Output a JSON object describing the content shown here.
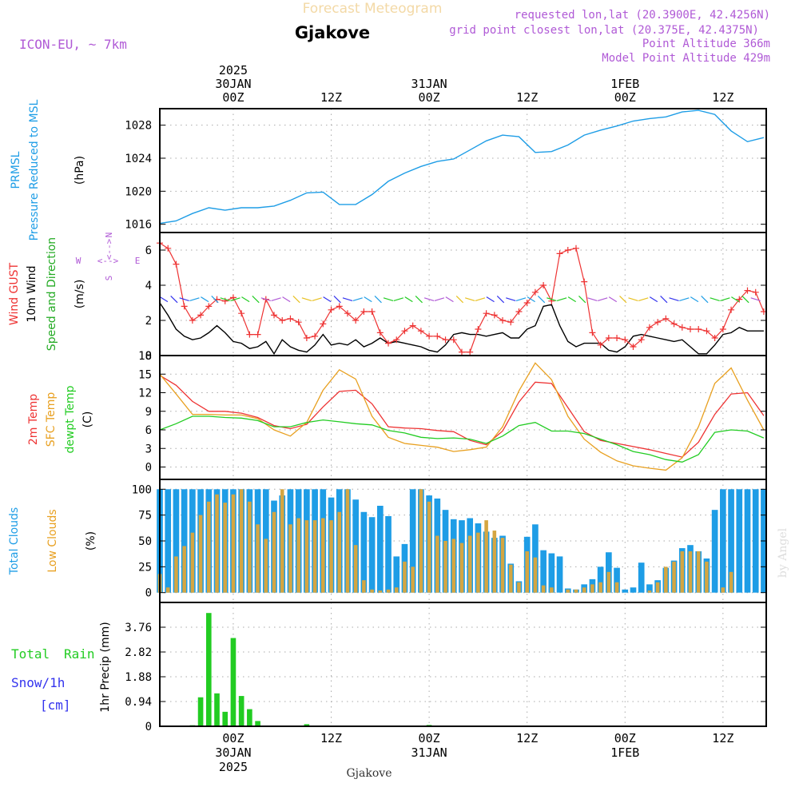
{
  "header": {
    "forecast_label": "Forecast Meteogram",
    "station": "Gjakove",
    "model": "ICON-EU, ~ 7km",
    "requested": "requested lon,lat (20.3900E, 42.4256N)",
    "grid_point": "grid point closest lon,lat (20.375E, 42.4375N)",
    "point_altitude": "Point Altitude 366m",
    "model_altitude": "Model Point Altitude 429m"
  },
  "footer": {
    "station": "Gjakove",
    "credit": "by Angel"
  },
  "time_axis": {
    "top_labels": [
      {
        "hour": 9,
        "lines": [
          "2025",
          "30JAN",
          "00Z"
        ]
      },
      {
        "hour": 21,
        "lines": [
          "12Z"
        ]
      },
      {
        "hour": 33,
        "lines": [
          "31JAN",
          "00Z"
        ]
      },
      {
        "hour": 45,
        "lines": [
          "12Z"
        ]
      },
      {
        "hour": 57,
        "lines": [
          "1FEB",
          "00Z"
        ]
      },
      {
        "hour": 69,
        "lines": [
          "12Z"
        ]
      }
    ],
    "bottom_labels": [
      {
        "hour": 9,
        "lines": [
          "00Z",
          "30JAN",
          "2025"
        ]
      },
      {
        "hour": 21,
        "lines": [
          "12Z"
        ]
      },
      {
        "hour": 33,
        "lines": [
          "00Z",
          "31JAN"
        ]
      },
      {
        "hour": 45,
        "lines": [
          "12Z"
        ]
      },
      {
        "hour": 57,
        "lines": [
          "00Z",
          "1FEB"
        ]
      },
      {
        "hour": 69,
        "lines": [
          "12Z"
        ]
      }
    ]
  },
  "panels": {
    "pressure": {
      "title": "PRMSL",
      "subtitle": "Pressure Reduced to MSL",
      "unit": "(hPa)",
      "ticks": [
        "1016",
        "1020",
        "1024",
        "1028"
      ]
    },
    "wind": {
      "gust_label": "Wind GUST",
      "wind_label": "10m Wind",
      "dir_label": "Speed and Direction",
      "unit": "(m/s)",
      "ticks": [
        "0",
        "2",
        "4",
        "6"
      ],
      "compass": {
        "n": "N",
        "s": "S",
        "e": "E",
        "w": "W",
        "ns": "<-->",
        "we": "<-->"
      }
    },
    "temp": {
      "t2m_label": "2m Temp",
      "sfc_label": "SFC Temp",
      "dew_label": "dewpt Temp",
      "unit": "(C)",
      "ticks": [
        "0",
        "3",
        "6",
        "9",
        "12",
        "15",
        "18"
      ]
    },
    "clouds": {
      "total_label": "Total Clouds",
      "low_label": "Low Clouds",
      "unit": "(%)",
      "ticks": [
        "0",
        "25",
        "50",
        "75",
        "100"
      ]
    },
    "precip": {
      "total_label": "Total",
      "rain_label": "Rain",
      "snow_label": "Snow/1h",
      "snow_unit": "[cm]",
      "unit": "1hr Precip (mm)",
      "ticks": [
        "0",
        "0.94",
        "1.88",
        "2.82",
        "3.76"
      ]
    }
  },
  "chart_data": [
    {
      "type": "line",
      "title": "PRMSL Pressure Reduced to MSL",
      "ylabel": "(hPa)",
      "x_hours_from_start": [
        0,
        2,
        4,
        6,
        8,
        10,
        12,
        14,
        16,
        18,
        20,
        22,
        24,
        26,
        28,
        30,
        32,
        34,
        36,
        38,
        40,
        42,
        44,
        46,
        48,
        50,
        52,
        54,
        56,
        58,
        60,
        62,
        64,
        66,
        68,
        70,
        72,
        74
      ],
      "ylim": [
        1015,
        1030
      ],
      "series": [
        {
          "name": "PRMSL",
          "color": "#1e9de6",
          "values": [
            1016.1,
            1016.4,
            1017.3,
            1018.0,
            1017.7,
            1018.0,
            1018.0,
            1018.2,
            1018.9,
            1019.8,
            1019.9,
            1018.4,
            1018.4,
            1019.6,
            1021.2,
            1022.2,
            1023.0,
            1023.6,
            1023.9,
            1025.0,
            1026.1,
            1026.8,
            1026.6,
            1024.7,
            1024.8,
            1025.6,
            1026.8,
            1027.4,
            1027.9,
            1028.5,
            1028.8,
            1029.0,
            1029.6,
            1029.8,
            1029.3,
            1027.3,
            1026.0,
            1026.5
          ]
        }
      ]
    },
    {
      "type": "line",
      "title": "Wind GUST / 10m Wind Speed and Direction",
      "ylabel": "(m/s)",
      "x_hours_from_start": [
        0,
        1,
        2,
        3,
        4,
        5,
        6,
        7,
        8,
        9,
        10,
        11,
        12,
        13,
        14,
        15,
        16,
        17,
        18,
        19,
        20,
        21,
        22,
        23,
        24,
        25,
        26,
        27,
        28,
        29,
        30,
        31,
        32,
        33,
        34,
        35,
        36,
        37,
        38,
        39,
        40,
        41,
        42,
        43,
        44,
        45,
        46,
        47,
        48,
        49,
        50,
        51,
        52,
        53,
        54,
        55,
        56,
        57,
        58,
        59,
        60,
        61,
        62,
        63,
        64,
        65,
        66,
        67,
        68,
        69,
        70,
        71,
        72,
        73,
        74
      ],
      "ylim": [
        0,
        7
      ],
      "series": [
        {
          "name": "Wind GUST",
          "color": "#ee3333",
          "values": [
            6.4,
            6.1,
            5.2,
            2.8,
            2.0,
            2.3,
            2.8,
            3.2,
            3.1,
            3.3,
            2.4,
            1.2,
            1.2,
            3.2,
            2.3,
            2.0,
            2.1,
            1.9,
            1.0,
            1.1,
            1.8,
            2.6,
            2.8,
            2.4,
            2.0,
            2.5,
            2.5,
            1.3,
            0.7,
            0.9,
            1.4,
            1.7,
            1.4,
            1.1,
            1.1,
            0.9,
            0.9,
            0.2,
            0.2,
            1.5,
            2.4,
            2.3,
            2.0,
            1.9,
            2.5,
            3.0,
            3.6,
            4.0,
            3.1,
            5.8,
            6.0,
            6.1,
            4.2,
            1.3,
            0.6,
            1.0,
            1.0,
            0.9,
            0.5,
            0.9,
            1.6,
            1.9,
            2.1,
            1.8,
            1.6,
            1.5,
            1.5,
            1.4,
            1.0,
            1.5,
            2.6,
            3.2,
            3.7,
            3.6,
            2.5,
            2.6
          ]
        },
        {
          "name": "10m Wind",
          "color": "#000000",
          "values": [
            3.0,
            2.3,
            1.5,
            1.1,
            0.9,
            1.0,
            1.3,
            1.7,
            1.3,
            0.8,
            0.7,
            0.4,
            0.5,
            0.8,
            0.1,
            0.9,
            0.5,
            0.3,
            0.2,
            0.6,
            1.2,
            0.6,
            0.7,
            0.6,
            0.9,
            0.5,
            0.7,
            1.0,
            0.7,
            0.8,
            0.7,
            0.6,
            0.5,
            0.3,
            0.2,
            0.6,
            1.2,
            1.3,
            1.2,
            1.2,
            1.1,
            1.2,
            1.3,
            1.0,
            1.0,
            1.5,
            1.7,
            2.8,
            2.9,
            1.7,
            0.8,
            0.5,
            0.7,
            0.7,
            0.7,
            0.3,
            0.2,
            0.5,
            1.1,
            1.2,
            1.1,
            1.0,
            0.9,
            0.8,
            0.9,
            0.5,
            0.1,
            0.1,
            0.6,
            1.2,
            1.3,
            1.6,
            1.4,
            1.4,
            1.4
          ]
        }
      ]
    },
    {
      "type": "line",
      "title": "2m Temp / SFC Temp / dewpt Temp",
      "ylabel": "(C)",
      "x_hours_from_start": [
        0,
        2,
        4,
        6,
        8,
        10,
        12,
        14,
        16,
        18,
        20,
        22,
        24,
        26,
        28,
        30,
        32,
        34,
        36,
        38,
        40,
        42,
        44,
        46,
        48,
        50,
        52,
        54,
        56,
        58,
        60,
        62,
        64,
        66,
        68,
        70,
        72,
        74
      ],
      "ylim": [
        -2,
        18
      ],
      "series": [
        {
          "name": "2m Temp",
          "color": "#ee3333",
          "values": [
            14.8,
            13.2,
            10.6,
            9.0,
            9.0,
            8.7,
            8.0,
            6.7,
            6.2,
            6.9,
            9.7,
            12.2,
            12.4,
            10.2,
            6.5,
            6.3,
            6.2,
            5.9,
            5.7,
            4.3,
            3.6,
            5.8,
            10.5,
            13.7,
            13.5,
            9.6,
            5.7,
            4.3,
            3.8,
            3.3,
            2.8,
            2.2,
            1.6,
            4.0,
            8.5,
            11.8,
            12.0,
            8.3
          ]
        },
        {
          "name": "SFC Temp",
          "color": "#e8a020",
          "values": [
            15.0,
            11.8,
            8.5,
            8.5,
            8.4,
            8.4,
            7.8,
            6.0,
            5.0,
            7.2,
            12.4,
            15.7,
            14.2,
            8.2,
            4.8,
            3.8,
            3.5,
            3.2,
            2.5,
            2.8,
            3.2,
            6.5,
            12.3,
            16.8,
            14.1,
            8.2,
            4.5,
            2.4,
            1.0,
            0.2,
            -0.2,
            -0.5,
            1.5,
            6.5,
            13.5,
            16.0,
            10.8,
            6.0
          ]
        },
        {
          "name": "dewpt Temp",
          "color": "#22cc22",
          "values": [
            6.0,
            7.0,
            8.2,
            8.2,
            8.0,
            7.9,
            7.5,
            6.5,
            6.5,
            7.2,
            7.6,
            7.3,
            7.0,
            6.8,
            5.9,
            5.5,
            4.8,
            4.6,
            4.7,
            4.5,
            3.8,
            5.0,
            6.7,
            7.2,
            5.8,
            5.8,
            5.4,
            4.5,
            3.6,
            2.5,
            2.0,
            1.2,
            0.8,
            2.0,
            5.6,
            6.0,
            5.8,
            4.7
          ]
        }
      ]
    },
    {
      "type": "bar",
      "title": "Total Clouds / Low Clouds",
      "ylabel": "(%)",
      "x_hours_from_start": [
        0,
        1,
        2,
        3,
        4,
        5,
        6,
        7,
        8,
        9,
        10,
        11,
        12,
        13,
        14,
        15,
        16,
        17,
        18,
        19,
        20,
        21,
        22,
        23,
        24,
        25,
        26,
        27,
        28,
        29,
        30,
        31,
        32,
        33,
        34,
        35,
        36,
        37,
        38,
        39,
        40,
        41,
        42,
        43,
        44,
        45,
        46,
        47,
        48,
        49,
        50,
        51,
        52,
        53,
        54,
        55,
        56,
        57,
        58,
        59,
        60,
        61,
        62,
        63,
        64,
        65,
        66,
        67,
        68,
        69,
        70,
        71,
        72,
        73,
        74
      ],
      "ylim": [
        0,
        100
      ],
      "series": [
        {
          "name": "Total Clouds",
          "color": "#1e9de6",
          "values": [
            100,
            100,
            100,
            100,
            100,
            100,
            100,
            100,
            100,
            100,
            100,
            100,
            100,
            100,
            89,
            94,
            100,
            100,
            100,
            100,
            100,
            92,
            100,
            100,
            90,
            78,
            73,
            84,
            74,
            35,
            47,
            100,
            100,
            94,
            91,
            80,
            71,
            70,
            72,
            67,
            59,
            53,
            55,
            28,
            11,
            54,
            66,
            41,
            38,
            35,
            4,
            3,
            8,
            13,
            25,
            39,
            24,
            3,
            5,
            29,
            8,
            12,
            24,
            31,
            43,
            46,
            40,
            33,
            80,
            100,
            100,
            100,
            100,
            100,
            100
          ]
        },
        {
          "name": "Low Clouds",
          "color": "#d4a642",
          "values": [
            18,
            5,
            35,
            45,
            58,
            75,
            88,
            95,
            87,
            95,
            100,
            88,
            66,
            52,
            78,
            100,
            66,
            72,
            70,
            70,
            72,
            70,
            78,
            100,
            46,
            12,
            3,
            2,
            3,
            5,
            30,
            25,
            100,
            88,
            55,
            50,
            52,
            48,
            55,
            58,
            70,
            60,
            53,
            27,
            10,
            40,
            34,
            7,
            5,
            0,
            3,
            3,
            5,
            8,
            10,
            20,
            10,
            0,
            0,
            0,
            2,
            10,
            25,
            30,
            40,
            40,
            40,
            30,
            0,
            5,
            20,
            0,
            0,
            0,
            0
          ]
        }
      ]
    },
    {
      "type": "bar",
      "title": "Total Rain / Snow/1h",
      "ylabel": "1hr Precip (mm)",
      "x_hours_from_start": [
        1,
        4,
        5,
        6,
        7,
        8,
        9,
        10,
        11,
        12,
        18,
        33
      ],
      "ylim": [
        0,
        4.7
      ],
      "series": [
        {
          "name": "Total Rain",
          "color": "#22cc22",
          "values": [
            0.03,
            0.04,
            1.1,
            4.3,
            1.25,
            0.55,
            3.35,
            1.15,
            0.65,
            0.2,
            0.08,
            0.05
          ]
        }
      ]
    }
  ]
}
